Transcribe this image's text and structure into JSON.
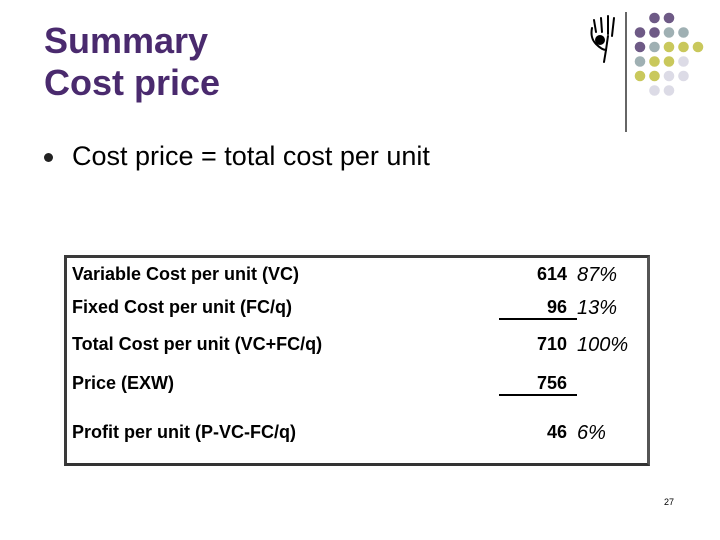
{
  "slide": {
    "title_line1": "Summary",
    "title_line2": "Cost price",
    "bullet": "Cost price = total cost per unit",
    "page_number": "27"
  },
  "table": {
    "rows": [
      {
        "label": "Variable Cost per unit (VC)",
        "value": "614",
        "pct": "87%"
      },
      {
        "label": "Fixed Cost per unit (FC/q)",
        "value": "96",
        "pct": "13%"
      },
      {
        "label": "Total Cost per unit (VC+FC/q)",
        "value": "710",
        "pct": "100%"
      },
      {
        "label": "Price (EXW)",
        "value": "756",
        "pct": ""
      },
      {
        "label": "Profit per unit (P-VC-FC/q)",
        "value": "46",
        "pct": "6%"
      }
    ]
  },
  "colors": {
    "title": "#4a2a6e",
    "dot_purple": "#6e5a86",
    "dot_gray": "#9fb0b3",
    "dot_yellow": "#c9c85c",
    "dot_light": "#dcdbe6"
  },
  "icons": [
    "hand-logo-icon",
    "dot-grid-decoration"
  ]
}
